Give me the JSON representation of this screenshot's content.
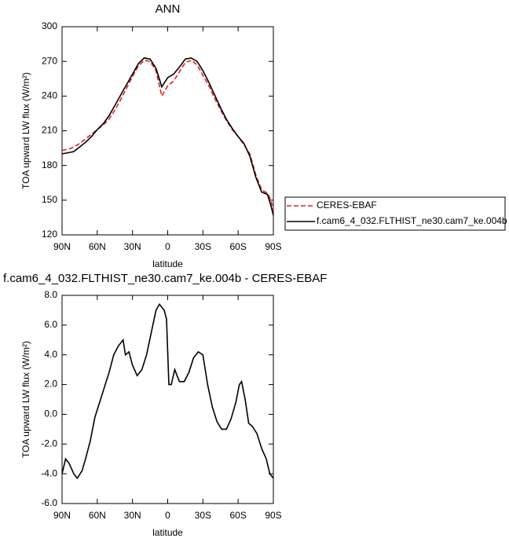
{
  "chart_data": [
    {
      "type": "line",
      "title": "ANN",
      "ylabel": "TOA upward LW flux (W/m²)",
      "xlabel": "latitude",
      "x": [
        90,
        85,
        80,
        75,
        70,
        65,
        60,
        55,
        50,
        45,
        40,
        35,
        30,
        25,
        20,
        15,
        10,
        5,
        0,
        -5,
        -10,
        -15,
        -20,
        -25,
        -30,
        -35,
        -40,
        -45,
        -50,
        -55,
        -60,
        -65,
        -70,
        -75,
        -80,
        -85,
        -88,
        -90
      ],
      "series": [
        {
          "name": "CERES-EBAF",
          "color": "#e02020",
          "dashed": true,
          "values": [
            193,
            194,
            196,
            199,
            203,
            207,
            211,
            215,
            220,
            228,
            237,
            247,
            257,
            266,
            271,
            270,
            262,
            240,
            249,
            253,
            261,
            269,
            271,
            267,
            258,
            249,
            238,
            228,
            219,
            211,
            205,
            198,
            190,
            172,
            159,
            156,
            150,
            140
          ]
        },
        {
          "name": "f.cam6_4_032.FLTHIST_ne30.cam7_ke.004b",
          "color": "#000000",
          "dashed": false,
          "values": [
            190,
            191,
            192,
            196,
            200,
            205,
            211,
            216,
            223,
            232,
            241,
            250,
            259,
            268,
            273,
            272,
            264,
            248,
            256,
            259,
            265,
            272,
            273,
            270,
            262,
            252,
            241,
            230,
            220,
            212,
            205,
            199,
            188,
            170,
            157,
            155,
            145,
            137
          ]
        }
      ],
      "xlim": [
        90,
        -90
      ],
      "xticks": [
        {
          "value": 90,
          "label": "90N"
        },
        {
          "value": 60,
          "label": "60N"
        },
        {
          "value": 30,
          "label": "30N"
        },
        0,
        {
          "value": -30,
          "label": "30S"
        },
        {
          "value": -60,
          "label": "60S"
        },
        {
          "value": -90,
          "label": "90S"
        }
      ],
      "ylim": [
        120,
        300
      ],
      "yticks": [
        120,
        150,
        180,
        210,
        240,
        270,
        300
      ]
    },
    {
      "type": "line",
      "title": "f.cam6_4_032.FLTHIST_ne30.cam7_ke.004b - CERES-EBAF",
      "ylabel": "TOA upward LW flux (W/m²)",
      "xlabel": "latitude",
      "x": [
        90,
        87,
        84,
        80,
        77,
        73,
        70,
        66,
        62,
        58,
        54,
        50,
        46,
        42,
        38,
        36,
        33,
        30,
        26,
        22,
        18,
        14,
        10,
        7,
        5,
        3,
        1,
        -1,
        -3,
        -6,
        -10,
        -14,
        -18,
        -22,
        -26,
        -30,
        -34,
        -38,
        -42,
        -46,
        -50,
        -54,
        -58,
        -61,
        -63,
        -66,
        -69,
        -72,
        -76,
        -80,
        -84,
        -87,
        -90
      ],
      "values": [
        -4.0,
        -3.0,
        -3.3,
        -4.0,
        -4.3,
        -3.8,
        -3.0,
        -1.8,
        -0.2,
        0.8,
        1.8,
        2.8,
        4.0,
        4.6,
        5.0,
        4.0,
        4.2,
        3.3,
        2.6,
        3.0,
        4.0,
        5.5,
        7.0,
        7.4,
        7.2,
        7.0,
        6.4,
        2.0,
        2.0,
        3.0,
        2.2,
        2.2,
        2.8,
        3.8,
        4.2,
        4.0,
        2.0,
        0.5,
        -0.5,
        -1.0,
        -1.0,
        -0.3,
        0.8,
        2.0,
        2.2,
        1.0,
        -0.6,
        -0.8,
        -1.3,
        -2.3,
        -3.0,
        -4.0,
        -4.3
      ],
      "color": "#000000",
      "xlim": [
        90,
        -90
      ],
      "xticks": [
        {
          "value": 90,
          "label": "90N"
        },
        {
          "value": 60,
          "label": "60N"
        },
        {
          "value": 30,
          "label": "30N"
        },
        0,
        {
          "value": -30,
          "label": "30S"
        },
        {
          "value": -60,
          "label": "60S"
        },
        {
          "value": -90,
          "label": "90S"
        }
      ],
      "ylim": [
        -6,
        8
      ],
      "yticks": [
        {
          "value": -6,
          "label": "-6.0"
        },
        {
          "value": -4,
          "label": "-4.0"
        },
        {
          "value": -2,
          "label": "-2.0"
        },
        {
          "value": 0,
          "label": "0.0"
        },
        {
          "value": 2,
          "label": "2.0"
        },
        {
          "value": 4,
          "label": "4.0"
        },
        {
          "value": 6,
          "label": "6.0"
        },
        {
          "value": 8,
          "label": "8.0"
        }
      ]
    }
  ]
}
